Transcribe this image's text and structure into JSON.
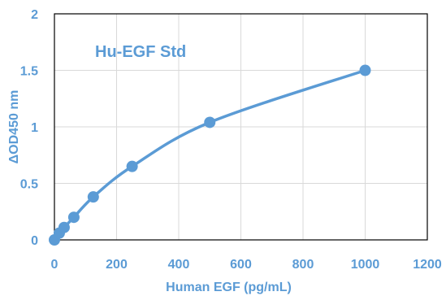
{
  "chart_data": {
    "type": "scatter",
    "title": "Hu-EGF Std",
    "xlabel": "Human EGF (pg/mL)",
    "ylabel": "ΔOD450 nm",
    "xlim": [
      0,
      1200
    ],
    "ylim": [
      0,
      2
    ],
    "xticks": [
      0,
      200,
      400,
      600,
      800,
      1000,
      1200
    ],
    "yticks": [
      0,
      0.5,
      1,
      1.5,
      2
    ],
    "grid": true,
    "smooth_line": true,
    "color": "#5b9bd5",
    "series": [
      {
        "x": [
          0,
          15.6,
          31.2,
          62.5,
          125,
          250,
          500,
          1000
        ],
        "y": [
          0.0,
          0.06,
          0.11,
          0.2,
          0.38,
          0.65,
          1.04,
          1.5
        ]
      }
    ]
  }
}
